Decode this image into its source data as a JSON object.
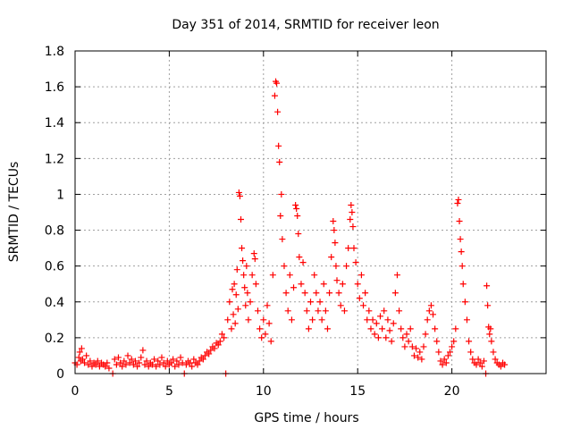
{
  "chart_data": {
    "type": "scatter",
    "title": "Day 351 of 2014, SRMTID for receiver leon",
    "xlabel": "GPS time / hours",
    "ylabel": "SRMTID / TECUs",
    "xlim": [
      0,
      25
    ],
    "ylim": [
      0,
      1.8
    ],
    "xticks": [
      0,
      5,
      10,
      15,
      20
    ],
    "yticks": [
      0,
      0.2,
      0.4,
      0.6,
      0.8,
      1,
      1.2,
      1.4,
      1.6,
      1.8
    ],
    "ytick_labels": [
      "0",
      "0.2",
      "0.4",
      "0.6",
      "0.8",
      "1",
      "1.2",
      "1.4",
      "1.6",
      "1.8"
    ],
    "grid": true,
    "marker": "+",
    "color": "#ff0000",
    "series": [
      {
        "name": "SRMTID",
        "points": [
          [
            0.0,
            0.06
          ],
          [
            0.1,
            0.05
          ],
          [
            0.2,
            0.09
          ],
          [
            0.25,
            0.12
          ],
          [
            0.3,
            0.07
          ],
          [
            0.35,
            0.14
          ],
          [
            0.4,
            0.08
          ],
          [
            0.5,
            0.06
          ],
          [
            0.6,
            0.1
          ],
          [
            0.7,
            0.05
          ],
          [
            0.8,
            0.07
          ],
          [
            0.9,
            0.04
          ],
          [
            1.0,
            0.06
          ],
          [
            1.1,
            0.05
          ],
          [
            1.2,
            0.07
          ],
          [
            1.3,
            0.04
          ],
          [
            1.4,
            0.06
          ],
          [
            1.5,
            0.05
          ],
          [
            1.6,
            0.04
          ],
          [
            1.7,
            0.06
          ],
          [
            1.8,
            0.03
          ],
          [
            2.0,
            0.0
          ],
          [
            2.1,
            0.08
          ],
          [
            2.2,
            0.05
          ],
          [
            2.3,
            0.09
          ],
          [
            2.4,
            0.06
          ],
          [
            2.5,
            0.04
          ],
          [
            2.6,
            0.07
          ],
          [
            2.7,
            0.05
          ],
          [
            2.8,
            0.1
          ],
          [
            2.9,
            0.06
          ],
          [
            3.0,
            0.08
          ],
          [
            3.1,
            0.05
          ],
          [
            3.2,
            0.07
          ],
          [
            3.3,
            0.04
          ],
          [
            3.4,
            0.06
          ],
          [
            3.5,
            0.09
          ],
          [
            3.6,
            0.13
          ],
          [
            3.7,
            0.05
          ],
          [
            3.8,
            0.07
          ],
          [
            3.9,
            0.04
          ],
          [
            4.0,
            0.06
          ],
          [
            4.1,
            0.05
          ],
          [
            4.2,
            0.08
          ],
          [
            4.3,
            0.04
          ],
          [
            4.4,
            0.07
          ],
          [
            4.5,
            0.05
          ],
          [
            4.6,
            0.09
          ],
          [
            4.7,
            0.06
          ],
          [
            4.8,
            0.04
          ],
          [
            4.9,
            0.07
          ],
          [
            5.0,
            0.05
          ],
          [
            5.1,
            0.06
          ],
          [
            5.2,
            0.08
          ],
          [
            5.3,
            0.04
          ],
          [
            5.4,
            0.07
          ],
          [
            5.5,
            0.05
          ],
          [
            5.6,
            0.09
          ],
          [
            5.7,
            0.06
          ],
          [
            5.8,
            0.0
          ],
          [
            5.9,
            0.05
          ],
          [
            6.0,
            0.07
          ],
          [
            6.1,
            0.06
          ],
          [
            6.2,
            0.04
          ],
          [
            6.3,
            0.08
          ],
          [
            6.4,
            0.06
          ],
          [
            6.5,
            0.05
          ],
          [
            6.6,
            0.07
          ],
          [
            6.7,
            0.09
          ],
          [
            6.8,
            0.08
          ],
          [
            6.9,
            0.1
          ],
          [
            7.0,
            0.12
          ],
          [
            7.1,
            0.11
          ],
          [
            7.2,
            0.13
          ],
          [
            7.3,
            0.15
          ],
          [
            7.4,
            0.14
          ],
          [
            7.5,
            0.17
          ],
          [
            7.6,
            0.16
          ],
          [
            7.7,
            0.18
          ],
          [
            7.8,
            0.22
          ],
          [
            7.9,
            0.2
          ],
          [
            8.0,
            0.0
          ],
          [
            8.1,
            0.3
          ],
          [
            8.2,
            0.4
          ],
          [
            8.3,
            0.25
          ],
          [
            8.35,
            0.47
          ],
          [
            8.4,
            0.33
          ],
          [
            8.45,
            0.5
          ],
          [
            8.5,
            0.28
          ],
          [
            8.55,
            0.44
          ],
          [
            8.6,
            0.58
          ],
          [
            8.65,
            0.36
          ],
          [
            8.7,
            1.01
          ],
          [
            8.75,
            0.99
          ],
          [
            8.8,
            0.86
          ],
          [
            8.85,
            0.7
          ],
          [
            8.9,
            0.63
          ],
          [
            8.95,
            0.55
          ],
          [
            9.0,
            0.48
          ],
          [
            9.05,
            0.38
          ],
          [
            9.1,
            0.6
          ],
          [
            9.15,
            0.45
          ],
          [
            9.2,
            0.3
          ],
          [
            9.3,
            0.4
          ],
          [
            9.4,
            0.55
          ],
          [
            9.5,
            0.67
          ],
          [
            9.55,
            0.64
          ],
          [
            9.6,
            0.5
          ],
          [
            9.7,
            0.35
          ],
          [
            9.8,
            0.25
          ],
          [
            9.9,
            0.2
          ],
          [
            10.0,
            0.3
          ],
          [
            10.1,
            0.22
          ],
          [
            10.2,
            0.38
          ],
          [
            10.3,
            0.28
          ],
          [
            10.4,
            0.18
          ],
          [
            10.5,
            0.55
          ],
          [
            10.6,
            1.55
          ],
          [
            10.65,
            1.63
          ],
          [
            10.7,
            1.62
          ],
          [
            10.75,
            1.46
          ],
          [
            10.8,
            1.27
          ],
          [
            10.85,
            1.18
          ],
          [
            10.9,
            0.88
          ],
          [
            10.95,
            1.0
          ],
          [
            11.0,
            0.75
          ],
          [
            11.1,
            0.6
          ],
          [
            11.2,
            0.45
          ],
          [
            11.3,
            0.35
          ],
          [
            11.4,
            0.55
          ],
          [
            11.5,
            0.3
          ],
          [
            11.6,
            0.48
          ],
          [
            11.7,
            0.94
          ],
          [
            11.75,
            0.92
          ],
          [
            11.8,
            0.88
          ],
          [
            11.85,
            0.78
          ],
          [
            11.9,
            0.65
          ],
          [
            12.0,
            0.5
          ],
          [
            12.1,
            0.62
          ],
          [
            12.2,
            0.45
          ],
          [
            12.3,
            0.35
          ],
          [
            12.4,
            0.25
          ],
          [
            12.5,
            0.4
          ],
          [
            12.6,
            0.3
          ],
          [
            12.7,
            0.55
          ],
          [
            12.8,
            0.45
          ],
          [
            12.9,
            0.35
          ],
          [
            13.0,
            0.4
          ],
          [
            13.1,
            0.3
          ],
          [
            13.2,
            0.5
          ],
          [
            13.3,
            0.35
          ],
          [
            13.4,
            0.25
          ],
          [
            13.5,
            0.45
          ],
          [
            13.6,
            0.65
          ],
          [
            13.7,
            0.85
          ],
          [
            13.75,
            0.8
          ],
          [
            13.8,
            0.73
          ],
          [
            13.85,
            0.6
          ],
          [
            13.9,
            0.52
          ],
          [
            14.0,
            0.45
          ],
          [
            14.1,
            0.38
          ],
          [
            14.2,
            0.5
          ],
          [
            14.3,
            0.35
          ],
          [
            14.4,
            0.6
          ],
          [
            14.5,
            0.7
          ],
          [
            14.6,
            0.86
          ],
          [
            14.65,
            0.94
          ],
          [
            14.7,
            0.9
          ],
          [
            14.75,
            0.82
          ],
          [
            14.8,
            0.7
          ],
          [
            14.9,
            0.62
          ],
          [
            15.0,
            0.5
          ],
          [
            15.1,
            0.42
          ],
          [
            15.2,
            0.55
          ],
          [
            15.3,
            0.38
          ],
          [
            15.4,
            0.45
          ],
          [
            15.5,
            0.3
          ],
          [
            15.6,
            0.35
          ],
          [
            15.7,
            0.25
          ],
          [
            15.8,
            0.3
          ],
          [
            15.9,
            0.22
          ],
          [
            16.0,
            0.28
          ],
          [
            16.1,
            0.2
          ],
          [
            16.2,
            0.32
          ],
          [
            16.3,
            0.25
          ],
          [
            16.4,
            0.35
          ],
          [
            16.5,
            0.2
          ],
          [
            16.6,
            0.3
          ],
          [
            16.7,
            0.24
          ],
          [
            16.8,
            0.18
          ],
          [
            16.9,
            0.28
          ],
          [
            17.0,
            0.45
          ],
          [
            17.1,
            0.55
          ],
          [
            17.2,
            0.35
          ],
          [
            17.3,
            0.25
          ],
          [
            17.4,
            0.2
          ],
          [
            17.5,
            0.15
          ],
          [
            17.6,
            0.22
          ],
          [
            17.7,
            0.18
          ],
          [
            17.8,
            0.25
          ],
          [
            17.9,
            0.15
          ],
          [
            18.0,
            0.1
          ],
          [
            18.1,
            0.14
          ],
          [
            18.2,
            0.09
          ],
          [
            18.3,
            0.12
          ],
          [
            18.4,
            0.08
          ],
          [
            18.5,
            0.15
          ],
          [
            18.6,
            0.22
          ],
          [
            18.7,
            0.3
          ],
          [
            18.8,
            0.35
          ],
          [
            18.9,
            0.38
          ],
          [
            19.0,
            0.33
          ],
          [
            19.1,
            0.25
          ],
          [
            19.2,
            0.18
          ],
          [
            19.3,
            0.12
          ],
          [
            19.4,
            0.07
          ],
          [
            19.5,
            0.05
          ],
          [
            19.6,
            0.08
          ],
          [
            19.7,
            0.06
          ],
          [
            19.8,
            0.1
          ],
          [
            19.9,
            0.12
          ],
          [
            20.0,
            0.15
          ],
          [
            20.1,
            0.18
          ],
          [
            20.2,
            0.25
          ],
          [
            20.3,
            0.95
          ],
          [
            20.35,
            0.97
          ],
          [
            20.4,
            0.85
          ],
          [
            20.45,
            0.75
          ],
          [
            20.5,
            0.68
          ],
          [
            20.55,
            0.6
          ],
          [
            20.6,
            0.5
          ],
          [
            20.7,
            0.4
          ],
          [
            20.8,
            0.3
          ],
          [
            20.9,
            0.18
          ],
          [
            21.0,
            0.12
          ],
          [
            21.1,
            0.08
          ],
          [
            21.2,
            0.06
          ],
          [
            21.3,
            0.05
          ],
          [
            21.4,
            0.08
          ],
          [
            21.5,
            0.06
          ],
          [
            21.6,
            0.04
          ],
          [
            21.7,
            0.07
          ],
          [
            21.8,
            0.0
          ],
          [
            21.85,
            0.49
          ],
          [
            21.9,
            0.38
          ],
          [
            21.95,
            0.26
          ],
          [
            22.0,
            0.22
          ],
          [
            22.05,
            0.25
          ],
          [
            22.1,
            0.18
          ],
          [
            22.2,
            0.12
          ],
          [
            22.3,
            0.08
          ],
          [
            22.4,
            0.06
          ],
          [
            22.5,
            0.05
          ],
          [
            22.6,
            0.04
          ],
          [
            22.7,
            0.06
          ],
          [
            22.8,
            0.05
          ]
        ]
      }
    ]
  }
}
